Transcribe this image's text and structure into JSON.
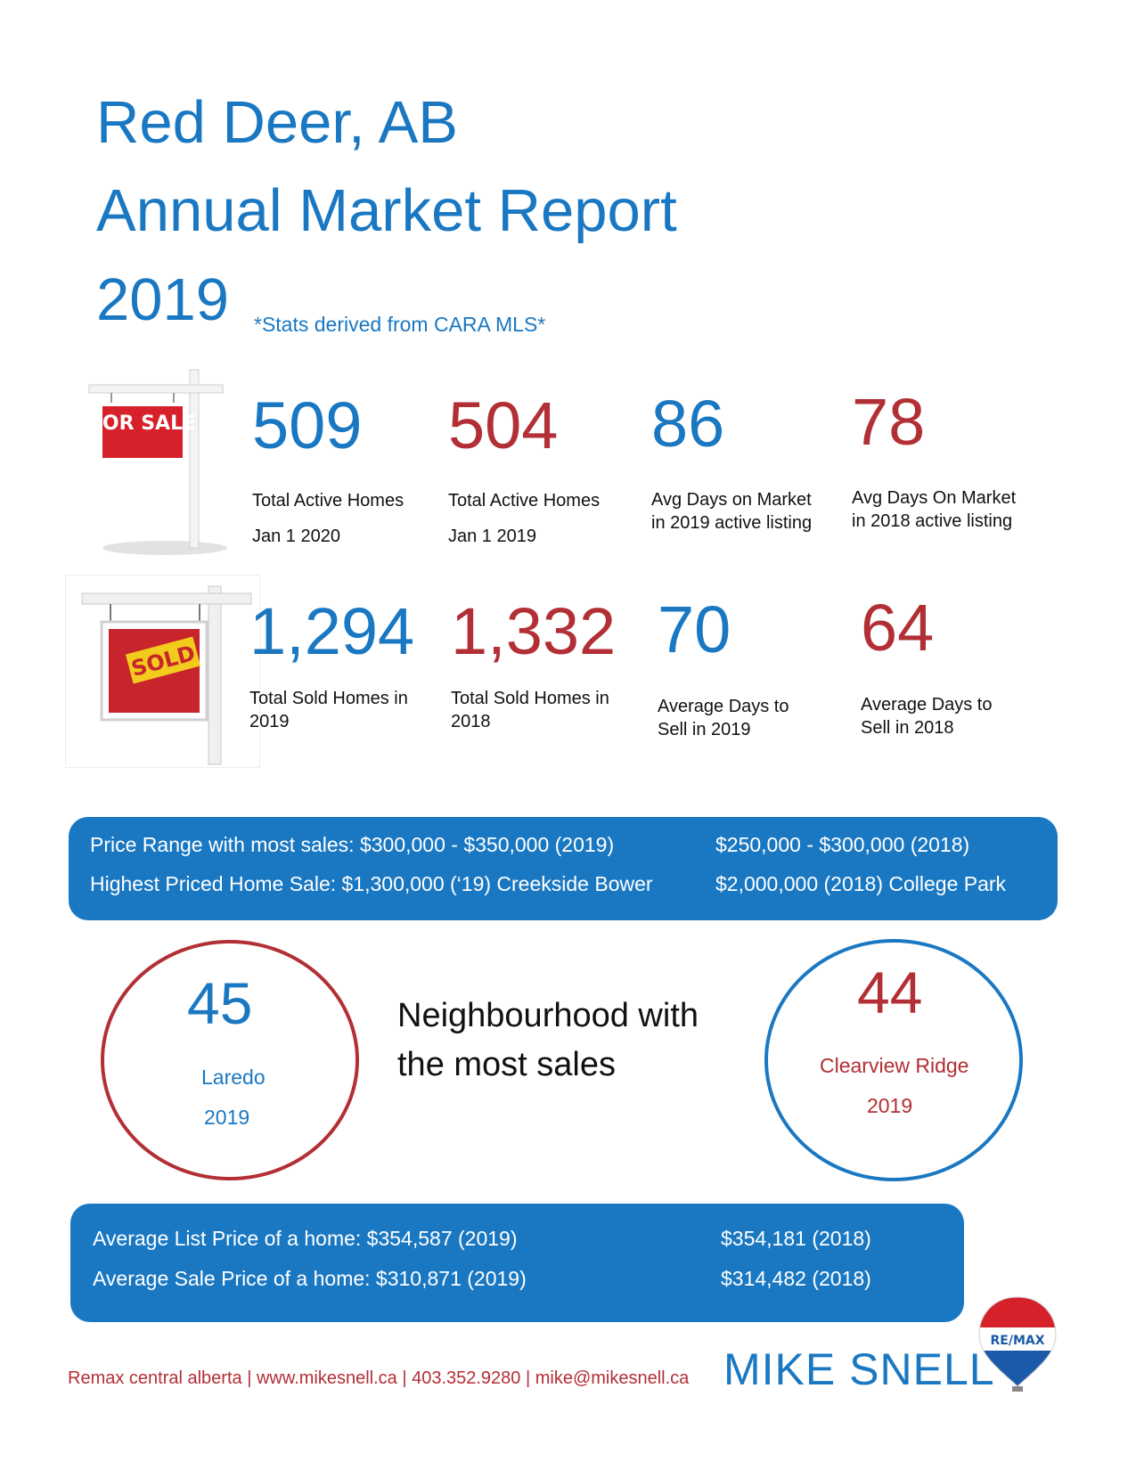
{
  "header": {
    "city": "Red Deer, AB",
    "report_title": "Annual Market Report",
    "year": "2019",
    "source_note": "*Stats derived from CARA MLS*"
  },
  "sign_images": {
    "for_sale_text": "FOR SALE",
    "sold_text": "SOLD"
  },
  "active_stats": [
    {
      "value": "509",
      "label_line1": "Total Active Homes",
      "label_line2": "Jan 1 2020",
      "color": "#1a78c2"
    },
    {
      "value": "504",
      "label_line1": "Total Active Homes",
      "label_line2": "Jan 1 2019",
      "color": "#b22f35"
    },
    {
      "value": "86",
      "label_line1": "Avg Days on Market",
      "label_line2": "in 2019 active listing",
      "color": "#1a78c2"
    },
    {
      "value": "78",
      "label_line1": "Avg Days On Market",
      "label_line2": "in 2018 active listing",
      "color": "#b22f35"
    }
  ],
  "sold_stats": [
    {
      "value": "1,294",
      "label_line1": "Total Sold Homes in",
      "label_line2": "2019",
      "color": "#1a78c2"
    },
    {
      "value": "1,332",
      "label_line1": "Total Sold Homes in",
      "label_line2": "2018",
      "color": "#b22f35"
    },
    {
      "value": "70",
      "label_line1": "Average Days to",
      "label_line2": "Sell in 2019",
      "color": "#1a78c2"
    },
    {
      "value": "64",
      "label_line1": "Average Days to",
      "label_line2": "Sell in 2018",
      "color": "#b22f35"
    }
  ],
  "price_band": {
    "price_range_2019": "Price Range with most sales: $300,000 - $350,000 (2019)",
    "price_range_2018": "$250,000 - $300,000 (2018)",
    "highest_2019": "Highest Priced Home Sale: $1,300,000 (‘19) Creekside Bower",
    "highest_2018": "$2,000,000 (2018) College Park"
  },
  "neighbourhood": {
    "heading_line1": "Neighbourhood with",
    "heading_line2": "the most sales",
    "left": {
      "count": "45",
      "name": "Laredo",
      "year": "2019"
    },
    "right": {
      "count": "44",
      "name": "Clearview Ridge",
      "year": "2019"
    }
  },
  "average_band": {
    "list_2019": "Average List Price of a home: $354,587 (2019)",
    "list_2018": "$354,181 (2018)",
    "sale_2019": "Average Sale Price of a home: $310,871 (2019)",
    "sale_2018": "$314,482 (2018)"
  },
  "footer": {
    "contact": "Remax central alberta | www.mikesnell.ca | 403.352.9280 | mike@mikesnell.ca",
    "agent_name": "MIKE SNELL",
    "brand_logo_text": "RE/MAX"
  },
  "colors": {
    "blue": "#1a78c2",
    "red": "#b22f35"
  }
}
